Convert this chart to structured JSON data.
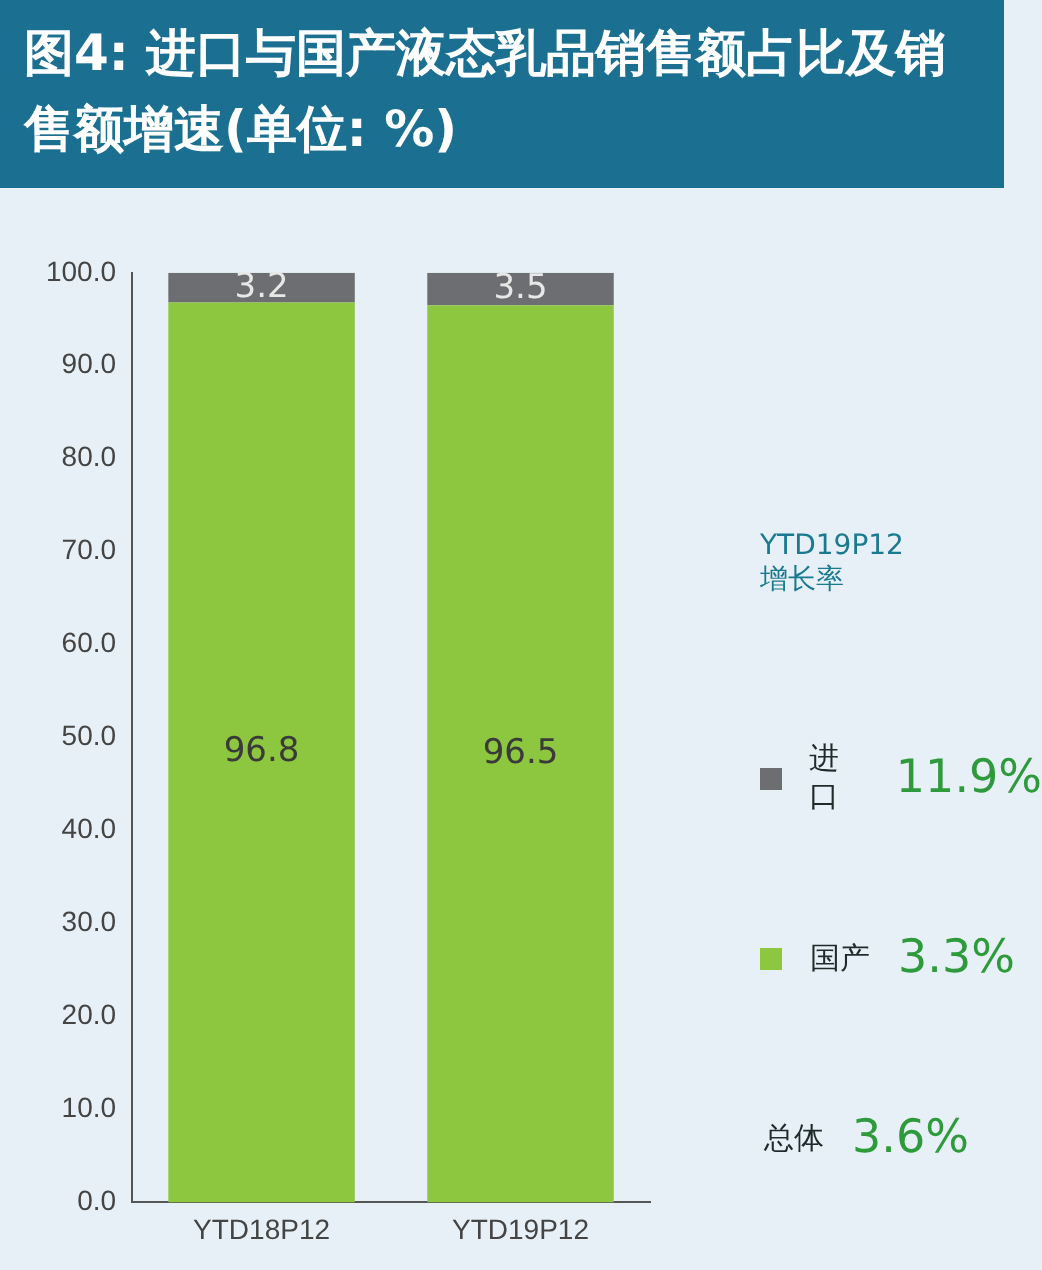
{
  "chart_data": {
    "type": "bar",
    "title": "图4: 进口与国产液态乳品销售额占比及销售额增速(单位: %)",
    "categories": [
      "YTD18P12",
      "YTD19P12"
    ],
    "stacked": true,
    "series": [
      {
        "name": "国产",
        "color": "#8dc63f",
        "values": [
          96.8,
          96.5
        ]
      },
      {
        "name": "进口",
        "color": "#6d6e71",
        "values": [
          3.2,
          3.5
        ]
      }
    ],
    "ylim": [
      0,
      100
    ],
    "yticks": [
      {
        "value": 0,
        "label": "0.0"
      },
      {
        "value": 10,
        "label": "10.0"
      },
      {
        "value": 20,
        "label": "20.0"
      },
      {
        "value": 30,
        "label": "30.0"
      },
      {
        "value": 40,
        "label": "40.0"
      },
      {
        "value": 50,
        "label": "50.0"
      },
      {
        "value": 60,
        "label": "60.0"
      },
      {
        "value": 70,
        "label": "70.0"
      },
      {
        "value": 80,
        "label": "80.0"
      },
      {
        "value": 90,
        "label": "90.0"
      },
      {
        "value": 100,
        "label": "100.0"
      }
    ],
    "grid": false,
    "data_labels": true,
    "legend": "right",
    "legend_title": "YTD19P12\n增长率",
    "annotations": [
      "3.3%",
      "11.9%",
      "总体 3.6%"
    ]
  }
}
